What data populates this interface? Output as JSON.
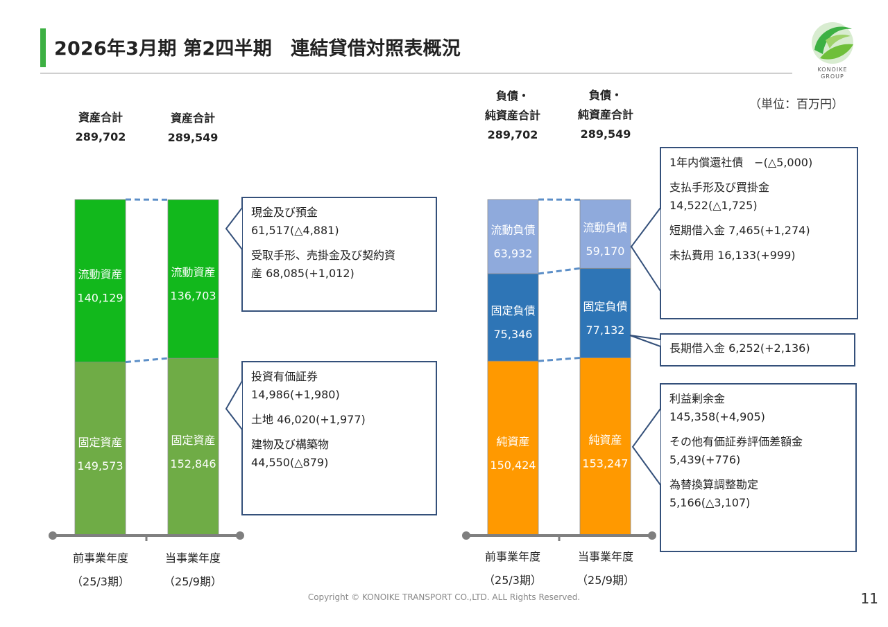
{
  "title": "2026年3月期 第2四半期　連結貸借対照表概況",
  "logo": {
    "line1": "KONOIKE",
    "line2": "GROUP",
    "brand_color": "#3db043",
    "icon": "konoike-leaf-logo"
  },
  "unit_label": "（単位：百万円）",
  "colors": {
    "current_assets": "#12b81c",
    "fixed_assets": "#6fac46",
    "current_liabilities": "#8faadc",
    "fixed_liabilities": "#2e75b6",
    "net_assets": "#ff9900",
    "box_border": "#34507a",
    "connector": "#5b8ec7",
    "axis": "#7f7f7f"
  },
  "chart_data": [
    {
      "type": "bar",
      "stacked": true,
      "categories": [
        "前事業年度（25/3期）",
        "当事業年度（25/9期）"
      ],
      "series": [
        {
          "name": "固定資産",
          "values": [
            149573,
            152846
          ]
        },
        {
          "name": "流動資産",
          "values": [
            140129,
            136703
          ]
        }
      ],
      "totals_label": "資産合計",
      "totals": [
        289702,
        289549
      ]
    },
    {
      "type": "bar",
      "stacked": true,
      "categories": [
        "前事業年度（25/3期）",
        "当事業年度（25/9期）"
      ],
      "series": [
        {
          "name": "純資産",
          "values": [
            150424,
            153247
          ]
        },
        {
          "name": "固定負債",
          "values": [
            75346,
            77132
          ]
        },
        {
          "name": "流動負債",
          "values": [
            63932,
            59170
          ]
        }
      ],
      "totals_label": "負債・純資産合計",
      "totals": [
        289702,
        289549
      ]
    }
  ],
  "left": {
    "headers": [
      {
        "label": "資産合計",
        "total": "289,702"
      },
      {
        "label": "資産合計",
        "total": "289,549"
      }
    ],
    "bars": [
      {
        "segments": [
          {
            "name": "固定資産",
            "value": "149,573"
          },
          {
            "name": "流動資産",
            "value": "140,129"
          }
        ]
      },
      {
        "segments": [
          {
            "name": "固定資産",
            "value": "152,846"
          },
          {
            "name": "流動資産",
            "value": "136,703"
          }
        ]
      }
    ],
    "xlabels": [
      {
        "line1": "前事業年度",
        "line2": "（25/3期）"
      },
      {
        "line1": "当事業年度",
        "line2": "（25/9期）"
      }
    ]
  },
  "right": {
    "headers": [
      {
        "line1": "負債・",
        "line2": "純資産合計",
        "total": "289,702"
      },
      {
        "line1": "負債・",
        "line2": "純資産合計",
        "total": "289,549"
      }
    ],
    "bars": [
      {
        "segments": [
          {
            "name": "純資産",
            "value": "150,424"
          },
          {
            "name": "固定負債",
            "value": "75,346"
          },
          {
            "name": "流動負債",
            "value": "63,932"
          }
        ]
      },
      {
        "segments": [
          {
            "name": "純資産",
            "value": "153,247"
          },
          {
            "name": "固定負債",
            "value": "77,132"
          },
          {
            "name": "流動負債",
            "value": "59,170"
          }
        ]
      }
    ],
    "xlabels": [
      {
        "line1": "前事業年度",
        "line2": "（25/3期）"
      },
      {
        "line1": "当事業年度",
        "line2": "（25/9期）"
      }
    ]
  },
  "callouts": {
    "current_assets": [
      "現金及び預金\n61,517(△4,881)",
      "受取手形、売掛金及び契約資\n産 68,085(+1,012)"
    ],
    "fixed_assets": [
      "投資有価証券\n14,986(+1,980)",
      "土地 46,020(+1,977)",
      "建物及び構築物\n44,550(△879)"
    ],
    "current_liabilities": [
      "1年内償還社債　−(△5,000)",
      "支払手形及び買掛金\n14,522(△1,725)",
      "短期借入金 7,465(+1,274)",
      "未払費用 16,133(+999)"
    ],
    "fixed_liabilities": [
      "長期借入金 6,252(+2,136)"
    ],
    "net_assets": [
      "利益剰余金\n145,358(+4,905)",
      "その他有価証券評価差額金\n5,439(+776)",
      "為替換算調整勘定\n5,166(△3,107)"
    ]
  },
  "footer": {
    "copyright": "Copyright © KONOIKE TRANSPORT CO.,LTD.  ALL Rights Reserved.",
    "page": "11"
  }
}
